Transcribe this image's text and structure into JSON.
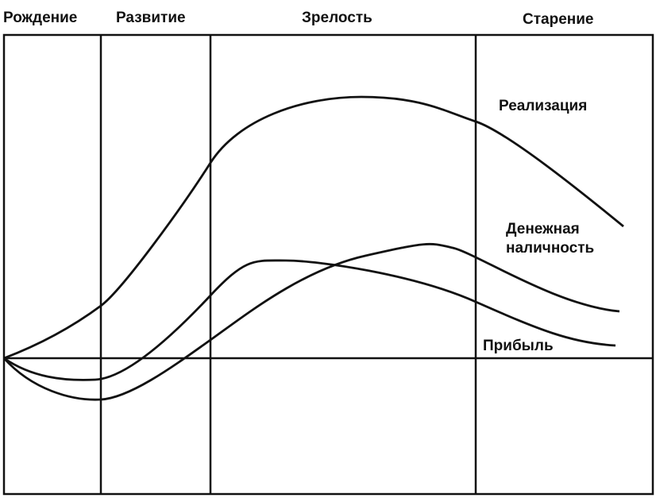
{
  "stages": [
    "Рождение",
    "Развитие",
    "Зрелость",
    "Старение"
  ],
  "curves": [
    {
      "label_lines": [
        "Реализация"
      ]
    },
    {
      "label_lines": [
        "Денежная",
        "наличность"
      ]
    },
    {
      "label_lines": [
        "Прибыль"
      ]
    }
  ]
}
